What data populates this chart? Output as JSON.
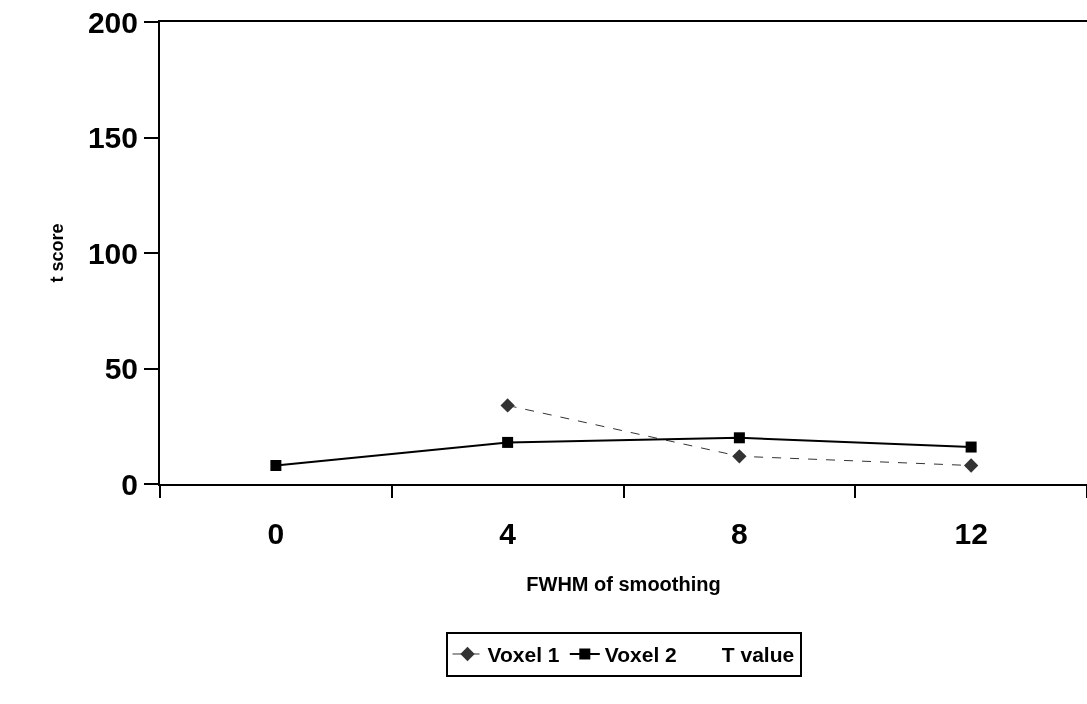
{
  "chart_data": {
    "type": "line",
    "xlabel": "FWHM of smoothing",
    "ylabel": "t score",
    "categories": [
      "0",
      "4",
      "8",
      "12"
    ],
    "series": [
      {
        "name": "Voxel 1",
        "color": "#333333",
        "values": [
          null,
          34,
          12,
          8
        ],
        "marker": "diamond",
        "line_style": "dashed"
      },
      {
        "name": "Voxel 2",
        "color": "#000000",
        "values": [
          8,
          18,
          20,
          16
        ],
        "marker": "square",
        "line_style": "solid"
      },
      {
        "name": "T value",
        "values": [
          null,
          null,
          null,
          null
        ],
        "marker": "none",
        "line_style": "solid"
      }
    ],
    "ylim": [
      0,
      200
    ],
    "yticks": [
      0,
      50,
      100,
      150,
      200
    ],
    "grid": false,
    "legend": "bottom"
  }
}
